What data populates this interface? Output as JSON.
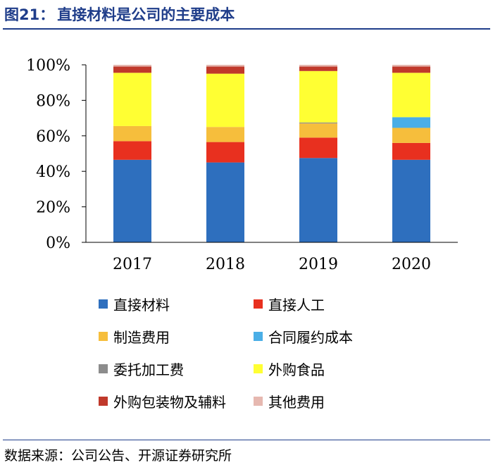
{
  "figure": {
    "number": "图21：",
    "title": "直接材料是公司的主要成本",
    "source": "数据来源：公司公告、开源证券研究所"
  },
  "chart_data": {
    "type": "bar",
    "stacked": true,
    "percent": true,
    "title": "直接材料是公司的主要成本",
    "xlabel": "",
    "ylabel": "",
    "ylim": [
      0,
      100
    ],
    "yticks": [
      "0%",
      "20%",
      "40%",
      "60%",
      "80%",
      "100%"
    ],
    "categories": [
      "2017",
      "2018",
      "2019",
      "2020"
    ],
    "legend_position": "bottom",
    "series": [
      {
        "name": "直接材料",
        "color": "#2e6fbe",
        "values": [
          46.5,
          45.0,
          47.5,
          46.5
        ]
      },
      {
        "name": "直接人工",
        "color": "#e8301f",
        "values": [
          10.5,
          11.5,
          11.5,
          9.5
        ]
      },
      {
        "name": "制造费用",
        "color": "#f6be3c",
        "values": [
          8.5,
          8.5,
          8.0,
          8.5
        ]
      },
      {
        "name": "合同履约成本",
        "color": "#4aaee6",
        "values": [
          0.0,
          0.0,
          0.0,
          6.0
        ]
      },
      {
        "name": "委托加工费",
        "color": "#8c8c8c",
        "values": [
          0.0,
          0.0,
          0.5,
          0.0
        ]
      },
      {
        "name": "外购食品",
        "color": "#ffff33",
        "values": [
          30.0,
          30.0,
          29.0,
          25.0
        ]
      },
      {
        "name": "外购包装物及辅料",
        "color": "#c0392b",
        "values": [
          3.5,
          4.0,
          2.5,
          3.5
        ]
      },
      {
        "name": "其他费用",
        "color": "#e6b8b0",
        "values": [
          1.0,
          1.0,
          1.0,
          1.0
        ]
      }
    ]
  }
}
